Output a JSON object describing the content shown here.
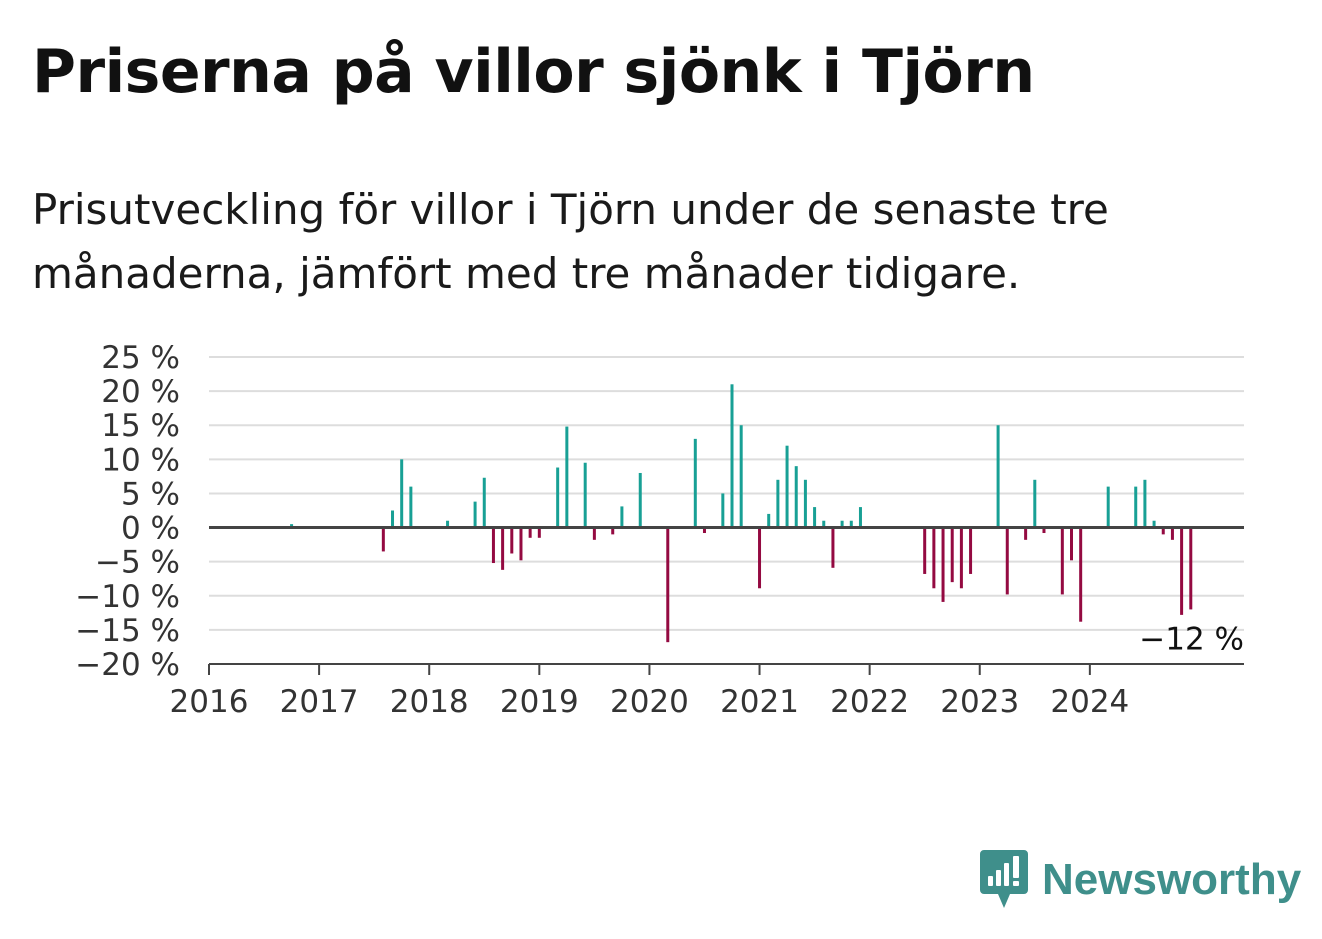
{
  "title": "Priserna på villor sjönk i Tjörn",
  "subtitle": "Prisutveckling för villor i Tjörn under de senaste tre månaderna, jämfört med tre månader tidigare.",
  "brand": {
    "name": "Newsworthy",
    "icon": "newsworthy-logo-icon"
  },
  "colors": {
    "positive": "#18a095",
    "negative": "#940a41",
    "grid": "#dddddd",
    "axis": "#444444"
  },
  "chart_data": {
    "type": "bar",
    "title": "",
    "xlabel": "",
    "ylabel": "",
    "ylim": [
      -20,
      25
    ],
    "xlim": [
      2016,
      2025.4
    ],
    "yticks": [
      25,
      20,
      15,
      10,
      5,
      0,
      -5,
      -10,
      -15,
      -20
    ],
    "ytick_labels": [
      "25 %",
      "20 %",
      "15 %",
      "10 %",
      "5 %",
      "0 %",
      "−5 %",
      "−10 %",
      "−15 %",
      "−20 %"
    ],
    "xticks": [
      2016,
      2017,
      2018,
      2019,
      2020,
      2021,
      2022,
      2023,
      2024
    ],
    "xtick_labels": [
      "2016",
      "2017",
      "2018",
      "2019",
      "2020",
      "2021",
      "2022",
      "2023",
      "2024"
    ],
    "grid": true,
    "legend": "none",
    "annotation": {
      "text": "−12 %",
      "x": 2024.83,
      "y": -12
    },
    "series": [
      {
        "x": [
          "2016-10",
          "2017-08",
          "2017-09",
          "2017-10",
          "2017-11",
          "2018-03",
          "2018-06",
          "2018-07",
          "2018-08",
          "2018-09",
          "2018-10",
          "2018-11",
          "2018-12",
          "2019-01",
          "2019-03",
          "2019-04",
          "2019-06",
          "2019-07",
          "2019-09",
          "2019-10",
          "2019-12",
          "2020-03",
          "2020-06",
          "2020-07",
          "2020-09",
          "2020-10",
          "2020-11",
          "2021-01",
          "2021-02",
          "2021-03",
          "2021-04",
          "2021-05",
          "2021-06",
          "2021-07",
          "2021-08",
          "2021-09",
          "2021-10",
          "2021-11",
          "2021-12",
          "2022-07",
          "2022-08",
          "2022-09",
          "2022-10",
          "2022-11",
          "2022-12",
          "2023-03",
          "2023-04",
          "2023-06",
          "2023-07",
          "2023-08",
          "2023-10",
          "2023-11",
          "2023-12",
          "2024-03",
          "2024-06",
          "2024-07",
          "2024-08",
          "2024-09",
          "2024-10",
          "2024-11",
          "2024-12"
        ],
        "values": [
          0.5,
          -3.5,
          2.5,
          10,
          6,
          1,
          3.8,
          7.3,
          -5.2,
          -6.2,
          -3.8,
          -4.8,
          -1.5,
          -1.5,
          8.8,
          14.8,
          9.5,
          -1.8,
          -1,
          3.1,
          8,
          -16.8,
          13,
          -0.8,
          5,
          21,
          15,
          -8.9,
          2,
          7,
          12,
          9,
          7,
          3,
          1,
          -5.9,
          1,
          1,
          3,
          -6.8,
          -8.9,
          -10.9,
          -8,
          -8.9,
          -6.8,
          15,
          -9.8,
          -1.8,
          7,
          -0.8,
          -9.8,
          -4.8,
          -13.8,
          6,
          6,
          7,
          1,
          -1,
          -1.8,
          -12.8,
          -12
        ]
      }
    ]
  }
}
